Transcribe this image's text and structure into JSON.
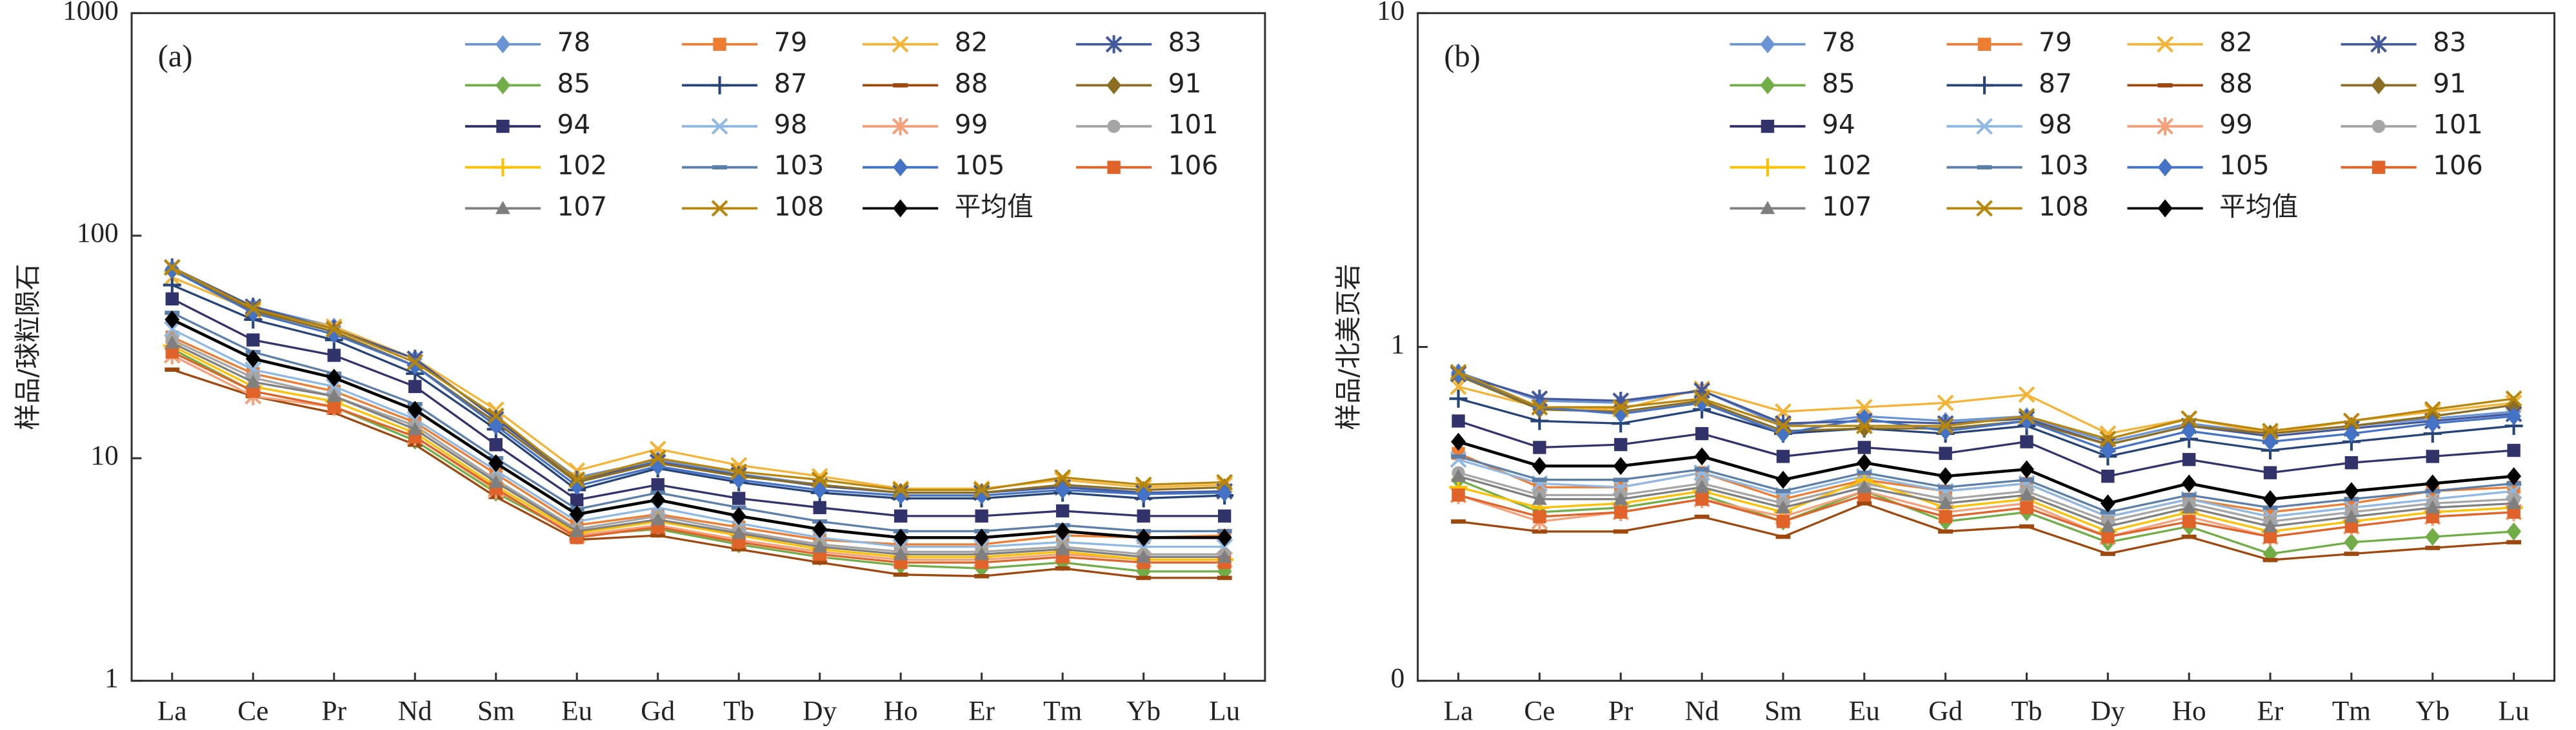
{
  "chart_data": [
    {
      "type": "line",
      "panel_label": "(a)",
      "y_label": "样品/球粒陨石",
      "log_scale": true,
      "ylim": [
        1,
        1000
      ],
      "yticks": [
        1,
        10,
        100,
        1000
      ],
      "categories": [
        "La",
        "Ce",
        "Pr",
        "Nd",
        "Sm",
        "Eu",
        "Gd",
        "Tb",
        "Dy",
        "Ho",
        "Er",
        "Tm",
        "Yb",
        "Lu"
      ],
      "series": [
        {
          "name": "78",
          "color": "#6a93d4",
          "marker": "diamond",
          "values": [
            71,
            48,
            39,
            28,
            15,
            8.2,
            9.8,
            8.5,
            7.6,
            7.0,
            7.0,
            7.5,
            7.0,
            7.0
          ]
        },
        {
          "name": "79",
          "color": "#ed7d31",
          "marker": "square",
          "values": [
            35,
            24,
            20,
            14.5,
            8.5,
            5.0,
            5.6,
            4.9,
            4.3,
            4.1,
            4.1,
            4.5,
            4.4,
            4.5
          ]
        },
        {
          "name": "82",
          "color": "#f5b335",
          "marker": "x",
          "values": [
            65,
            46,
            39,
            28,
            16.5,
            8.8,
            11,
            9.3,
            8.3,
            7.3,
            7.3,
            8.0,
            7.4,
            7.6
          ]
        },
        {
          "name": "83",
          "color": "#44589c",
          "marker": "star",
          "values": [
            72,
            48,
            38,
            28,
            15,
            8.0,
            9.6,
            8.4,
            7.5,
            7.0,
            7.0,
            7.4,
            7.0,
            7.1
          ]
        },
        {
          "name": "85",
          "color": "#70ad47",
          "marker": "diamond",
          "values": [
            31,
            20,
            17,
            12,
            7.0,
            4.5,
            4.8,
            4.1,
            3.6,
            3.3,
            3.2,
            3.4,
            3.1,
            3.1
          ]
        },
        {
          "name": "87",
          "color": "#264478",
          "marker": "plus",
          "values": [
            60,
            42,
            34,
            24,
            13.5,
            7.2,
            9.0,
            7.8,
            7.0,
            6.6,
            6.6,
            7.0,
            6.6,
            6.8
          ]
        },
        {
          "name": "88",
          "color": "#9e480e",
          "marker": "dash",
          "values": [
            25,
            19,
            16,
            11.5,
            6.7,
            4.3,
            4.5,
            3.9,
            3.4,
            3.0,
            2.95,
            3.2,
            2.9,
            2.9
          ]
        },
        {
          "name": "91",
          "color": "#8b6d23",
          "marker": "diamond",
          "values": [
            70,
            46,
            37,
            26,
            14.5,
            7.8,
            9.5,
            8.3,
            7.6,
            7.0,
            7.0,
            7.6,
            7.2,
            7.4
          ]
        },
        {
          "name": "94",
          "color": "#33336b",
          "marker": "square",
          "values": [
            52,
            34,
            29,
            21,
            11.5,
            6.5,
            7.6,
            6.6,
            6.0,
            5.5,
            5.5,
            5.8,
            5.5,
            5.5
          ]
        },
        {
          "name": "98",
          "color": "#8fb8e3",
          "marker": "x",
          "values": [
            38,
            25,
            21,
            15,
            8.8,
            5.2,
            6.0,
            5.1,
            4.4,
            4.0,
            4.0,
            4.2,
            4.0,
            4.0
          ]
        },
        {
          "name": "99",
          "color": "#f4a07a",
          "marker": "star",
          "values": [
            29,
            19,
            17,
            12.5,
            7.2,
            4.5,
            5.0,
            4.3,
            3.8,
            3.5,
            3.5,
            3.7,
            3.5,
            3.5
          ]
        },
        {
          "name": "101",
          "color": "#a5a5a5",
          "marker": "circle",
          "values": [
            34,
            23,
            19,
            14,
            8.0,
            4.8,
            5.5,
            4.7,
            4.1,
            3.8,
            3.8,
            4.0,
            3.7,
            3.7
          ]
        },
        {
          "name": "102",
          "color": "#ffc000",
          "marker": "plus",
          "values": [
            32,
            21,
            18,
            13,
            7.5,
            4.6,
            5.2,
            4.5,
            3.9,
            3.6,
            3.6,
            3.8,
            3.5,
            3.5
          ]
        },
        {
          "name": "103",
          "color": "#5b7fa8",
          "marker": "dash",
          "values": [
            45,
            30,
            24,
            17.5,
            10,
            5.9,
            7.0,
            6.0,
            5.2,
            4.7,
            4.7,
            5.0,
            4.7,
            4.7
          ]
        },
        {
          "name": "105",
          "color": "#4472c4",
          "marker": "diamond",
          "values": [
            70,
            45,
            36,
            26,
            14,
            7.5,
            9.2,
            8.0,
            7.2,
            6.8,
            6.8,
            7.2,
            6.9,
            7.0
          ]
        },
        {
          "name": "106",
          "color": "#e0632a",
          "marker": "square",
          "values": [
            30,
            20,
            17,
            12.5,
            7.3,
            4.4,
            4.9,
            4.2,
            3.7,
            3.4,
            3.4,
            3.6,
            3.4,
            3.4
          ]
        },
        {
          "name": "107",
          "color": "#7f7f7f",
          "marker": "triangle",
          "values": [
            33,
            22,
            19,
            13.5,
            7.8,
            4.7,
            5.3,
            4.6,
            4.0,
            3.7,
            3.7,
            3.9,
            3.6,
            3.6
          ]
        },
        {
          "name": "108",
          "color": "#b8860b",
          "marker": "x",
          "values": [
            72,
            47,
            38,
            27,
            15.5,
            8.0,
            10,
            8.7,
            8.0,
            7.2,
            7.2,
            8.2,
            7.6,
            7.8
          ]
        },
        {
          "name": "平均值",
          "color": "#000000",
          "marker": "diamond",
          "values": [
            42,
            28,
            23,
            16.5,
            9.5,
            5.6,
            6.5,
            5.5,
            4.8,
            4.4,
            4.4,
            4.7,
            4.4,
            4.4
          ]
        }
      ]
    },
    {
      "type": "line",
      "panel_label": "(b)",
      "y_label": "样品/北美页岩",
      "log_scale": true,
      "ylim": [
        0.1,
        10
      ],
      "yticks": [
        {
          "value": 0.1,
          "label": "0"
        },
        1,
        10
      ],
      "categories": [
        "La",
        "Ce",
        "Pr",
        "Nd",
        "Sm",
        "Eu",
        "Gd",
        "Tb",
        "Dy",
        "Ho",
        "Er",
        "Tm",
        "Yb",
        "Lu"
      ],
      "series": [
        {
          "name": "78",
          "color": "#6a93d4",
          "marker": "diamond",
          "values": [
            0.84,
            0.69,
            0.68,
            0.74,
            0.58,
            0.62,
            0.6,
            0.62,
            0.52,
            0.59,
            0.55,
            0.58,
            0.61,
            0.64
          ]
        },
        {
          "name": "79",
          "color": "#ed7d31",
          "marker": "square",
          "values": [
            0.48,
            0.38,
            0.38,
            0.42,
            0.35,
            0.4,
            0.37,
            0.39,
            0.31,
            0.35,
            0.32,
            0.34,
            0.37,
            0.38
          ]
        },
        {
          "name": "82",
          "color": "#f5b335",
          "marker": "x",
          "values": [
            0.76,
            0.66,
            0.65,
            0.75,
            0.64,
            0.66,
            0.68,
            0.72,
            0.55,
            0.61,
            0.55,
            0.6,
            0.64,
            0.68
          ]
        },
        {
          "name": "83",
          "color": "#44589c",
          "marker": "star",
          "values": [
            0.83,
            0.7,
            0.69,
            0.74,
            0.59,
            0.6,
            0.59,
            0.61,
            0.51,
            0.58,
            0.54,
            0.57,
            0.6,
            0.63
          ]
        },
        {
          "name": "85",
          "color": "#70ad47",
          "marker": "diamond",
          "values": [
            0.4,
            0.32,
            0.33,
            0.36,
            0.3,
            0.37,
            0.3,
            0.32,
            0.26,
            0.29,
            0.24,
            0.26,
            0.27,
            0.28
          ]
        },
        {
          "name": "87",
          "color": "#264478",
          "marker": "plus",
          "values": [
            0.7,
            0.6,
            0.59,
            0.65,
            0.55,
            0.57,
            0.55,
            0.58,
            0.47,
            0.53,
            0.49,
            0.52,
            0.55,
            0.58
          ]
        },
        {
          "name": "88",
          "color": "#9e480e",
          "marker": "dash",
          "values": [
            0.3,
            0.28,
            0.28,
            0.31,
            0.27,
            0.34,
            0.28,
            0.29,
            0.24,
            0.27,
            0.23,
            0.24,
            0.25,
            0.26
          ]
        },
        {
          "name": "91",
          "color": "#8b6d23",
          "marker": "diamond",
          "values": [
            0.82,
            0.65,
            0.64,
            0.69,
            0.56,
            0.57,
            0.57,
            0.6,
            0.51,
            0.58,
            0.55,
            0.58,
            0.62,
            0.67
          ]
        },
        {
          "name": "94",
          "color": "#33336b",
          "marker": "square",
          "values": [
            0.6,
            0.5,
            0.51,
            0.55,
            0.47,
            0.5,
            0.48,
            0.52,
            0.41,
            0.46,
            0.42,
            0.45,
            0.47,
            0.49
          ]
        },
        {
          "name": "98",
          "color": "#8fb8e3",
          "marker": "x",
          "values": [
            0.46,
            0.39,
            0.38,
            0.42,
            0.36,
            0.41,
            0.37,
            0.39,
            0.31,
            0.35,
            0.31,
            0.33,
            0.35,
            0.37
          ]
        },
        {
          "name": "99",
          "color": "#f4a07a",
          "marker": "star",
          "values": [
            0.36,
            0.3,
            0.32,
            0.35,
            0.31,
            0.37,
            0.32,
            0.34,
            0.27,
            0.31,
            0.27,
            0.29,
            0.31,
            0.32
          ]
        },
        {
          "name": "101",
          "color": "#a5a5a5",
          "marker": "circle",
          "values": [
            0.42,
            0.36,
            0.36,
            0.39,
            0.34,
            0.39,
            0.35,
            0.37,
            0.3,
            0.34,
            0.3,
            0.32,
            0.34,
            0.35
          ]
        },
        {
          "name": "102",
          "color": "#ffc000",
          "marker": "plus",
          "values": [
            0.38,
            0.33,
            0.34,
            0.37,
            0.32,
            0.4,
            0.33,
            0.35,
            0.28,
            0.32,
            0.28,
            0.3,
            0.32,
            0.33
          ]
        },
        {
          "name": "103",
          "color": "#5b7fa8",
          "marker": "dash",
          "values": [
            0.47,
            0.4,
            0.4,
            0.43,
            0.37,
            0.42,
            0.38,
            0.4,
            0.32,
            0.36,
            0.33,
            0.35,
            0.37,
            0.39
          ]
        },
        {
          "name": "105",
          "color": "#4472c4",
          "marker": "diamond",
          "values": [
            0.83,
            0.66,
            0.63,
            0.68,
            0.55,
            0.61,
            0.56,
            0.6,
            0.49,
            0.56,
            0.52,
            0.55,
            0.59,
            0.62
          ]
        },
        {
          "name": "106",
          "color": "#e0632a",
          "marker": "square",
          "values": [
            0.36,
            0.31,
            0.32,
            0.35,
            0.3,
            0.36,
            0.31,
            0.33,
            0.27,
            0.3,
            0.27,
            0.29,
            0.31,
            0.32
          ]
        },
        {
          "name": "107",
          "color": "#7f7f7f",
          "marker": "triangle",
          "values": [
            0.41,
            0.35,
            0.35,
            0.38,
            0.33,
            0.38,
            0.34,
            0.36,
            0.29,
            0.33,
            0.29,
            0.31,
            0.33,
            0.34
          ]
        },
        {
          "name": "108",
          "color": "#b8860b",
          "marker": "x",
          "values": [
            0.84,
            0.66,
            0.66,
            0.7,
            0.58,
            0.58,
            0.58,
            0.62,
            0.53,
            0.61,
            0.56,
            0.6,
            0.65,
            0.7
          ]
        },
        {
          "name": "平均值",
          "color": "#000000",
          "marker": "diamond",
          "values": [
            0.52,
            0.44,
            0.44,
            0.47,
            0.4,
            0.45,
            0.41,
            0.43,
            0.34,
            0.39,
            0.35,
            0.37,
            0.39,
            0.41
          ]
        }
      ]
    }
  ]
}
